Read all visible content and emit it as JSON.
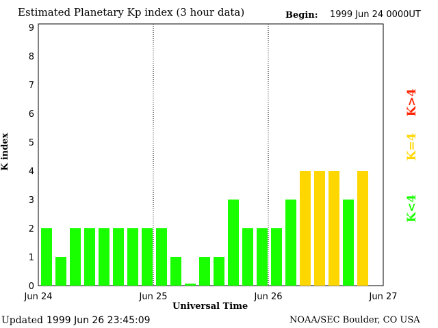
{
  "chart_data": {
    "type": "bar",
    "title": "Estimated Planetary Kp index (3 hour data)",
    "begin_label": "Begin:",
    "begin_value": "1999 Jun 24 0000UT",
    "xlabel": "Universal Time",
    "ylabel": "K index",
    "ylim": [
      0,
      9
    ],
    "yticks": [
      "0",
      "1",
      "2",
      "3",
      "4",
      "5",
      "6",
      "7",
      "8",
      "9"
    ],
    "xticks": [
      "Jun 24",
      "Jun 25",
      "Jun 26",
      "Jun 27"
    ],
    "interval_hours": 3,
    "values": [
      2,
      1,
      2,
      2,
      2,
      2,
      2,
      2,
      2,
      1,
      0.07,
      1,
      1,
      3,
      2,
      2,
      2,
      3,
      4,
      4,
      4,
      3,
      4
    ],
    "legend": [
      {
        "label": "K<4",
        "color": "#1aff00"
      },
      {
        "label": "K=4",
        "color": "#ffd700"
      },
      {
        "label": "K>4",
        "color": "#ff2200"
      }
    ]
  },
  "footer": {
    "updated_label": "Updated",
    "updated_value": "1999 Jun 26 23:45:09",
    "source": "NOAA/SEC Boulder, CO USA"
  }
}
